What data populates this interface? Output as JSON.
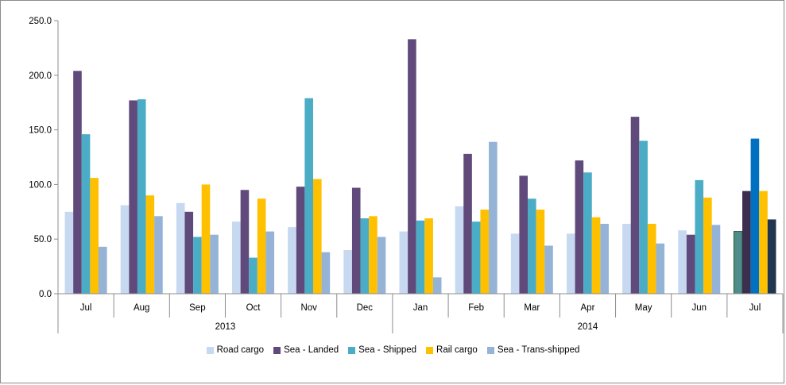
{
  "chart_data": {
    "type": "bar",
    "ylim": [
      0,
      250
    ],
    "yticks": [
      "0.0",
      "50.0",
      "100.0",
      "150.0",
      "200.0",
      "250.0"
    ],
    "ytick_values": [
      0,
      50,
      100,
      150,
      200,
      250
    ],
    "categories": [
      "Jul",
      "Aug",
      "Sep",
      "Oct",
      "Nov",
      "Dec",
      "Jan",
      "Feb",
      "Mar",
      "Apr",
      "May",
      "Jun",
      "Jul"
    ],
    "year_groups": [
      {
        "label": "2013",
        "start": 0,
        "end": 5
      },
      {
        "label": "2014",
        "start": 6,
        "end": 12
      }
    ],
    "legend_position": "bottom",
    "grid": false,
    "series": [
      {
        "name": "Road cargo",
        "color": "#c6d9f1",
        "values": [
          75,
          81,
          83,
          66,
          61,
          40,
          57,
          80,
          55,
          55,
          64,
          58,
          57
        ]
      },
      {
        "name": "Sea - Landed",
        "color": "#604a7b",
        "values": [
          204,
          177,
          75,
          95,
          98,
          97,
          233,
          128,
          108,
          122,
          162,
          54,
          94
        ]
      },
      {
        "name": "Sea - Shipped",
        "color": "#4bacc6",
        "values": [
          146,
          178,
          52,
          33,
          179,
          69,
          67,
          66,
          87,
          111,
          140,
          104,
          142
        ]
      },
      {
        "name": "Rail cargo",
        "color": "#ffc000",
        "values": [
          106,
          90,
          100,
          87,
          105,
          71,
          69,
          77,
          77,
          70,
          64,
          88,
          94
        ]
      },
      {
        "name": "Sea - Trans-shipped",
        "color": "#95b3d7",
        "values": [
          43,
          71,
          54,
          57,
          38,
          52,
          15,
          139,
          44,
          64,
          46,
          63,
          68
        ]
      }
    ],
    "highlight_last": {
      "colors": [
        "#4f8c8c",
        "#3b2e4e",
        "#0070c0",
        "#ffc000",
        "#1f3550"
      ]
    }
  }
}
